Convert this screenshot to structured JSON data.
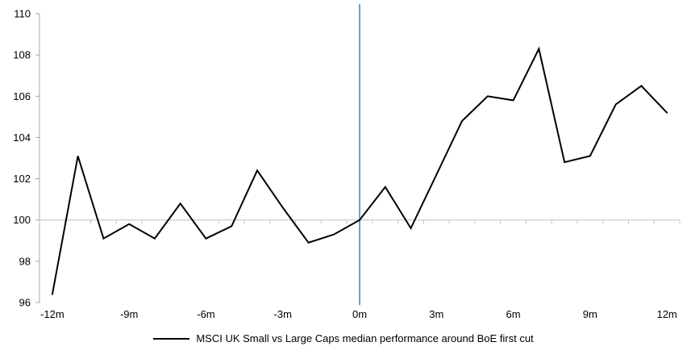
{
  "chart_data": {
    "type": "line",
    "x": [
      -12,
      -11,
      -10,
      -9,
      -8,
      -7,
      -6,
      -5,
      -4,
      -3,
      -2,
      -1,
      0,
      1,
      2,
      3,
      4,
      5,
      6,
      7,
      8,
      9,
      10,
      11,
      12
    ],
    "x_unit": "m",
    "series": [
      {
        "name": "MSCI UK Small vs Large Caps median performance around BoE first cut",
        "color": "#000000",
        "values": [
          96.4,
          103.1,
          99.1,
          99.8,
          99.1,
          100.8,
          99.1,
          99.7,
          102.4,
          100.6,
          98.9,
          99.3,
          100.0,
          101.6,
          99.6,
          102.2,
          104.8,
          106.0,
          105.8,
          108.3,
          102.8,
          103.1,
          105.6,
          106.5,
          105.2
        ]
      }
    ],
    "title": "",
    "xlabel": "",
    "ylabel": "",
    "ylim": [
      96,
      110
    ],
    "y_ticks": [
      96,
      98,
      100,
      102,
      104,
      106,
      108,
      110
    ],
    "x_tick_labels": [
      "-12m",
      "-9m",
      "-6m",
      "-3m",
      "0m",
      "3m",
      "6m",
      "9m",
      "12m"
    ],
    "x_tick_months": [
      -12,
      -9,
      -6,
      -3,
      0,
      3,
      6,
      9,
      12
    ],
    "baseline_value": 100,
    "event_line_x": 0,
    "grid": "baseline-only",
    "legend_position": "bottom"
  },
  "colors": {
    "series_line": "#000000",
    "event_line": "#4E86C0",
    "axis_line": "#A6A6A6",
    "baseline_line": "#BFBFBF",
    "tick_text": "#000000",
    "background": "#FFFFFF"
  },
  "legend": {
    "label": "MSCI UK Small vs Large Caps median performance around BoE first cut"
  }
}
